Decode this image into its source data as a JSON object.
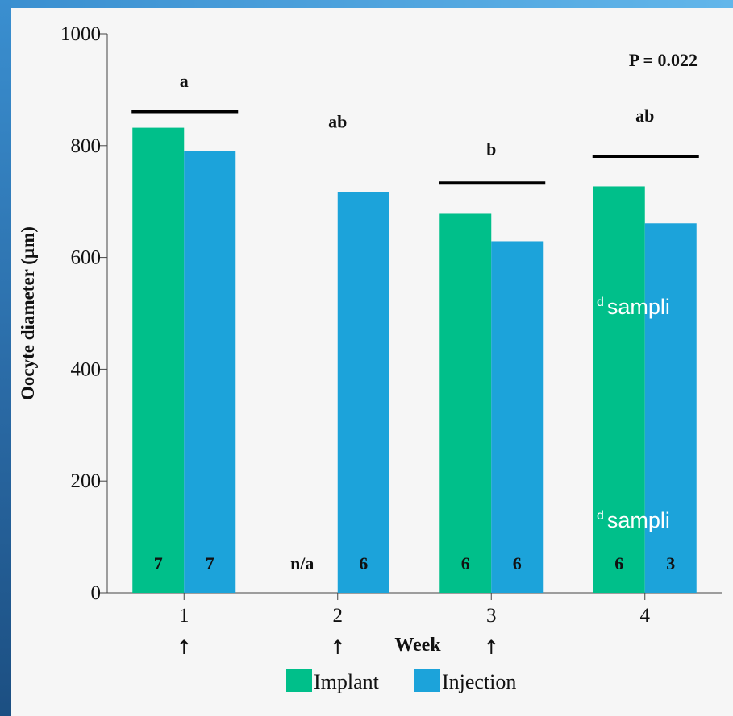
{
  "chart_data": {
    "type": "bar",
    "categories": [
      "1",
      "2",
      "3",
      "4"
    ],
    "series": [
      {
        "name": "Implant",
        "color": "#00bf8a",
        "values": [
          832,
          null,
          678,
          727
        ]
      },
      {
        "name": "Injection",
        "color": "#1ca3da",
        "values": [
          790,
          717,
          629,
          661
        ]
      }
    ],
    "sample_sizes": {
      "Implant": [
        "7",
        "n/a",
        "6",
        "6"
      ],
      "Injection": [
        "7",
        "6",
        "6",
        "3"
      ]
    },
    "group_letters": [
      "a",
      "ab",
      "b",
      "ab"
    ],
    "xlabel": "Week",
    "ylabel": "Oocyte diameter (µm)",
    "ylim": [
      0,
      1000
    ],
    "yticks": [
      0,
      200,
      400,
      600,
      800,
      1000
    ],
    "annotation": "P = 0.022",
    "arrow_marks": [
      "↑",
      "↑",
      "↑"
    ],
    "grid": false,
    "legend_position": "bottom-center"
  },
  "stray_text": [
    "d sampli",
    "d sampli"
  ]
}
